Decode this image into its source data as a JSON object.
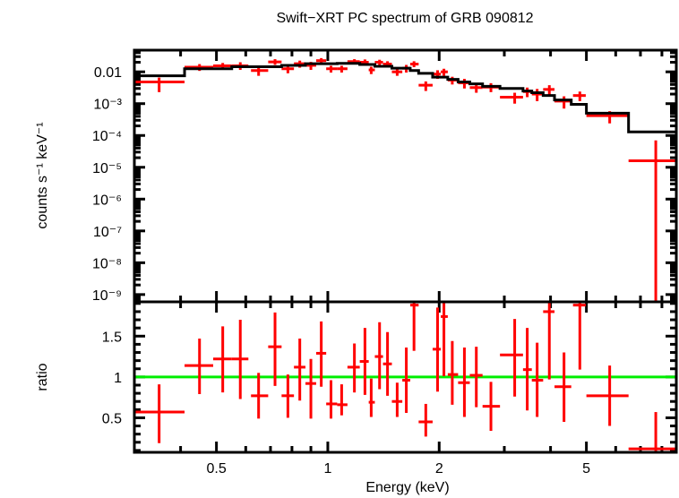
{
  "chart_data": {
    "type": "scatter",
    "title": "Swift−XRT PC spectrum of GRB 090812",
    "xlabel": "Energy (keV)",
    "xscale": "log",
    "xlim": [
      0.3,
      8.75
    ],
    "x_ticks": [
      {
        "value": 0.5,
        "label": "0.5"
      },
      {
        "value": 1,
        "label": "1"
      },
      {
        "value": 2,
        "label": "2"
      },
      {
        "value": 5,
        "label": "5"
      }
    ],
    "panels": [
      {
        "name": "spectrum",
        "ylabel": "counts s⁻¹ keV⁻¹",
        "yscale": "log",
        "ylim": [
          5.9e-10,
          0.048
        ],
        "y_ticks": [
          {
            "value": 0.01,
            "label": "0.01"
          },
          {
            "value": 0.001,
            "label": "10⁻³"
          },
          {
            "value": 0.0001,
            "label": "10⁻⁴"
          },
          {
            "value": 1e-05,
            "label": "10⁻⁵"
          },
          {
            "value": 1e-06,
            "label": "10⁻⁶"
          },
          {
            "value": 1e-07,
            "label": "10⁻⁷"
          },
          {
            "value": 1e-08,
            "label": "10⁻⁸"
          },
          {
            "value": 1e-09,
            "label": "10⁻⁹"
          }
        ],
        "series": [
          {
            "name": "data",
            "color": "#ff0000",
            "points": [
              {
                "x": 0.35,
                "xlo": 0.3,
                "xhi": 0.41,
                "y": 0.0048,
                "ylo": 0.0023,
                "yhi": 0.0066
              },
              {
                "x": 0.45,
                "xlo": 0.41,
                "xhi": 0.49,
                "y": 0.014,
                "ylo": 0.0107,
                "yhi": 0.0175
              },
              {
                "x": 0.52,
                "xlo": 0.49,
                "xhi": 0.55,
                "y": 0.0155,
                "ylo": 0.012,
                "yhi": 0.019
              },
              {
                "x": 0.58,
                "xlo": 0.55,
                "xhi": 0.61,
                "y": 0.0155,
                "ylo": 0.0115,
                "yhi": 0.02
              },
              {
                "x": 0.65,
                "xlo": 0.62,
                "xhi": 0.69,
                "y": 0.011,
                "ylo": 0.0075,
                "yhi": 0.0145
              },
              {
                "x": 0.72,
                "xlo": 0.69,
                "xhi": 0.75,
                "y": 0.0205,
                "ylo": 0.0165,
                "yhi": 0.025
              },
              {
                "x": 0.78,
                "xlo": 0.75,
                "xhi": 0.81,
                "y": 0.0125,
                "ylo": 0.009,
                "yhi": 0.016
              },
              {
                "x": 0.84,
                "xlo": 0.81,
                "xhi": 0.87,
                "y": 0.018,
                "ylo": 0.0135,
                "yhi": 0.0225
              },
              {
                "x": 0.9,
                "xlo": 0.87,
                "xhi": 0.93,
                "y": 0.016,
                "ylo": 0.0115,
                "yhi": 0.0205
              },
              {
                "x": 0.96,
                "xlo": 0.93,
                "xhi": 0.99,
                "y": 0.0225,
                "ylo": 0.018,
                "yhi": 0.027
              },
              {
                "x": 1.02,
                "xlo": 0.99,
                "xhi": 1.06,
                "y": 0.0125,
                "ylo": 0.0095,
                "yhi": 0.0155
              },
              {
                "x": 1.09,
                "xlo": 1.06,
                "xhi": 1.13,
                "y": 0.0125,
                "ylo": 0.0095,
                "yhi": 0.0155
              },
              {
                "x": 1.18,
                "xlo": 1.13,
                "xhi": 1.22,
                "y": 0.021,
                "ylo": 0.0175,
                "yhi": 0.025
              },
              {
                "x": 1.26,
                "xlo": 1.22,
                "xhi": 1.29,
                "y": 0.02,
                "ylo": 0.0155,
                "yhi": 0.0245
              },
              {
                "x": 1.31,
                "xlo": 1.29,
                "xhi": 1.34,
                "y": 0.0115,
                "ylo": 0.0085,
                "yhi": 0.0145
              },
              {
                "x": 1.38,
                "xlo": 1.34,
                "xhi": 1.41,
                "y": 0.02,
                "ylo": 0.016,
                "yhi": 0.024
              },
              {
                "x": 1.45,
                "xlo": 1.41,
                "xhi": 1.49,
                "y": 0.0175,
                "ylo": 0.014,
                "yhi": 0.0215
              },
              {
                "x": 1.54,
                "xlo": 1.49,
                "xhi": 1.59,
                "y": 0.01,
                "ylo": 0.0075,
                "yhi": 0.0125
              },
              {
                "x": 1.63,
                "xlo": 1.59,
                "xhi": 1.67,
                "y": 0.013,
                "ylo": 0.0095,
                "yhi": 0.0165
              },
              {
                "x": 1.71,
                "xlo": 1.67,
                "xhi": 1.76,
                "y": 0.0175,
                "ylo": 0.014,
                "yhi": 0.0215
              },
              {
                "x": 1.84,
                "xlo": 1.76,
                "xhi": 1.92,
                "y": 0.0038,
                "ylo": 0.0025,
                "yhi": 0.005
              },
              {
                "x": 1.98,
                "xlo": 1.92,
                "xhi": 2.02,
                "y": 0.0085,
                "ylo": 0.006,
                "yhi": 0.0112
              },
              {
                "x": 2.06,
                "xlo": 2.02,
                "xhi": 2.11,
                "y": 0.01,
                "ylo": 0.0075,
                "yhi": 0.0125
              },
              {
                "x": 2.17,
                "xlo": 2.11,
                "xhi": 2.25,
                "y": 0.0055,
                "ylo": 0.004,
                "yhi": 0.007
              },
              {
                "x": 2.34,
                "xlo": 2.25,
                "xhi": 2.42,
                "y": 0.0045,
                "ylo": 0.003,
                "yhi": 0.006
              },
              {
                "x": 2.52,
                "xlo": 2.42,
                "xhi": 2.62,
                "y": 0.0032,
                "ylo": 0.0022,
                "yhi": 0.0043
              },
              {
                "x": 2.76,
                "xlo": 2.62,
                "xhi": 2.92,
                "y": 0.0033,
                "ylo": 0.0023,
                "yhi": 0.0044
              },
              {
                "x": 3.2,
                "xlo": 2.92,
                "xhi": 3.37,
                "y": 0.0016,
                "ylo": 0.001,
                "yhi": 0.0022
              },
              {
                "x": 3.46,
                "xlo": 3.37,
                "xhi": 3.56,
                "y": 0.0024,
                "ylo": 0.0016,
                "yhi": 0.0032
              },
              {
                "x": 3.68,
                "xlo": 3.56,
                "xhi": 3.82,
                "y": 0.002,
                "ylo": 0.0012,
                "yhi": 0.0029
              },
              {
                "x": 3.97,
                "xlo": 3.82,
                "xhi": 4.1,
                "y": 0.0028,
                "ylo": 0.0018,
                "yhi": 0.0038
              },
              {
                "x": 4.35,
                "xlo": 4.1,
                "xhi": 4.55,
                "y": 0.0012,
                "ylo": 0.0007,
                "yhi": 0.0017
              },
              {
                "x": 4.8,
                "xlo": 4.6,
                "xhi": 4.98,
                "y": 0.0018,
                "ylo": 0.0012,
                "yhi": 0.0024
              },
              {
                "x": 5.78,
                "xlo": 5.0,
                "xhi": 6.5,
                "y": 0.00042,
                "ylo": 0.00024,
                "yhi": 0.00058
              },
              {
                "x": 7.7,
                "xlo": 6.5,
                "xhi": 8.75,
                "y": 1.6e-05,
                "ylo": 5.9e-10,
                "yhi": 7e-05
              }
            ]
          },
          {
            "name": "model",
            "color": "#000000",
            "style": "step",
            "steps": [
              {
                "xlo": 0.3,
                "xhi": 0.41,
                "y": 0.0075
              },
              {
                "xlo": 0.41,
                "xhi": 0.55,
                "y": 0.0125
              },
              {
                "xlo": 0.55,
                "xhi": 0.75,
                "y": 0.0145
              },
              {
                "xlo": 0.75,
                "xhi": 0.87,
                "y": 0.016
              },
              {
                "xlo": 0.87,
                "xhi": 1.06,
                "y": 0.018
              },
              {
                "xlo": 1.06,
                "xhi": 1.22,
                "y": 0.0185
              },
              {
                "xlo": 1.22,
                "xhi": 1.34,
                "y": 0.017
              },
              {
                "xlo": 1.34,
                "xhi": 1.49,
                "y": 0.015
              },
              {
                "xlo": 1.49,
                "xhi": 1.67,
                "y": 0.013
              },
              {
                "xlo": 1.67,
                "xhi": 1.76,
                "y": 0.011
              },
              {
                "xlo": 1.76,
                "xhi": 1.92,
                "y": 0.009
              },
              {
                "xlo": 1.92,
                "xhi": 2.11,
                "y": 0.0068
              },
              {
                "xlo": 2.11,
                "xhi": 2.25,
                "y": 0.0058
              },
              {
                "xlo": 2.25,
                "xhi": 2.42,
                "y": 0.0048
              },
              {
                "xlo": 2.42,
                "xhi": 2.62,
                "y": 0.0042
              },
              {
                "xlo": 2.62,
                "xhi": 2.92,
                "y": 0.0035
              },
              {
                "xlo": 2.92,
                "xhi": 3.37,
                "y": 0.003
              },
              {
                "xlo": 3.37,
                "xhi": 3.56,
                "y": 0.0025
              },
              {
                "xlo": 3.56,
                "xhi": 3.82,
                "y": 0.0022
              },
              {
                "xlo": 3.82,
                "xhi": 4.1,
                "y": 0.0018
              },
              {
                "xlo": 4.1,
                "xhi": 4.55,
                "y": 0.0013
              },
              {
                "xlo": 4.55,
                "xhi": 5.0,
                "y": 0.00095
              },
              {
                "xlo": 5.0,
                "xhi": 6.5,
                "y": 0.0005
              },
              {
                "xlo": 6.5,
                "xhi": 8.75,
                "y": 0.00013
              }
            ]
          }
        ]
      },
      {
        "name": "ratio",
        "ylabel": "ratio",
        "yscale": "linear",
        "ylim": [
          0.077,
          1.92
        ],
        "y_ticks": [
          {
            "value": 0.5,
            "label": "0.5"
          },
          {
            "value": 1,
            "label": "1"
          },
          {
            "value": 1.5,
            "label": "1.5"
          }
        ],
        "reference_line": {
          "y": 1,
          "color": "#00ee00"
        },
        "series": [
          {
            "name": "ratio",
            "color": "#ff0000",
            "points": [
              {
                "x": 0.35,
                "xlo": 0.3,
                "xhi": 0.41,
                "y": 0.57,
                "ylo": 0.19,
                "yhi": 0.91
              },
              {
                "x": 0.45,
                "xlo": 0.41,
                "xhi": 0.49,
                "y": 1.14,
                "ylo": 0.79,
                "yhi": 1.47
              },
              {
                "x": 0.52,
                "xlo": 0.49,
                "xhi": 0.55,
                "y": 1.22,
                "ylo": 0.81,
                "yhi": 1.62
              },
              {
                "x": 0.58,
                "xlo": 0.55,
                "xhi": 0.61,
                "y": 1.22,
                "ylo": 0.73,
                "yhi": 1.7
              },
              {
                "x": 0.65,
                "xlo": 0.62,
                "xhi": 0.69,
                "y": 0.77,
                "ylo": 0.49,
                "yhi": 1.05
              },
              {
                "x": 0.72,
                "xlo": 0.69,
                "xhi": 0.75,
                "y": 1.37,
                "ylo": 0.89,
                "yhi": 1.79
              },
              {
                "x": 0.78,
                "xlo": 0.75,
                "xhi": 0.81,
                "y": 0.77,
                "ylo": 0.5,
                "yhi": 1.03
              },
              {
                "x": 0.84,
                "xlo": 0.81,
                "xhi": 0.87,
                "y": 1.12,
                "ylo": 0.71,
                "yhi": 1.47
              },
              {
                "x": 0.9,
                "xlo": 0.87,
                "xhi": 0.93,
                "y": 0.92,
                "ylo": 0.49,
                "yhi": 1.22
              },
              {
                "x": 0.96,
                "xlo": 0.93,
                "xhi": 0.99,
                "y": 1.29,
                "ylo": 0.88,
                "yhi": 1.68
              },
              {
                "x": 1.02,
                "xlo": 0.99,
                "xhi": 1.06,
                "y": 0.67,
                "ylo": 0.49,
                "yhi": 0.96
              },
              {
                "x": 1.09,
                "xlo": 1.06,
                "xhi": 1.13,
                "y": 0.66,
                "ylo": 0.53,
                "yhi": 0.91
              },
              {
                "x": 1.18,
                "xlo": 1.13,
                "xhi": 1.22,
                "y": 1.12,
                "ylo": 0.81,
                "yhi": 1.41
              },
              {
                "x": 1.26,
                "xlo": 1.22,
                "xhi": 1.29,
                "y": 1.19,
                "ylo": 0.78,
                "yhi": 1.6
              },
              {
                "x": 1.31,
                "xlo": 1.29,
                "xhi": 1.34,
                "y": 0.69,
                "ylo": 0.51,
                "yhi": 0.98
              },
              {
                "x": 1.38,
                "xlo": 1.34,
                "xhi": 1.41,
                "y": 1.25,
                "ylo": 0.85,
                "yhi": 1.67
              },
              {
                "x": 1.45,
                "xlo": 1.41,
                "xhi": 1.49,
                "y": 1.16,
                "ylo": 0.77,
                "yhi": 1.55
              },
              {
                "x": 1.54,
                "xlo": 1.49,
                "xhi": 1.59,
                "y": 0.7,
                "ylo": 0.51,
                "yhi": 0.93
              },
              {
                "x": 1.63,
                "xlo": 1.59,
                "xhi": 1.67,
                "y": 0.96,
                "ylo": 0.56,
                "yhi": 1.36
              },
              {
                "x": 1.71,
                "xlo": 1.67,
                "xhi": 1.76,
                "y": 1.88,
                "ylo": 1.32,
                "yhi": 1.92
              },
              {
                "x": 1.84,
                "xlo": 1.76,
                "xhi": 1.92,
                "y": 0.45,
                "ylo": 0.27,
                "yhi": 0.67
              },
              {
                "x": 1.98,
                "xlo": 1.92,
                "xhi": 2.02,
                "y": 1.34,
                "ylo": 0.82,
                "yhi": 1.85
              },
              {
                "x": 2.06,
                "xlo": 2.02,
                "xhi": 2.11,
                "y": 1.74,
                "ylo": 1.01,
                "yhi": 1.92
              },
              {
                "x": 2.17,
                "xlo": 2.11,
                "xhi": 2.25,
                "y": 1.03,
                "ylo": 0.66,
                "yhi": 1.44
              },
              {
                "x": 2.34,
                "xlo": 2.25,
                "xhi": 2.42,
                "y": 0.93,
                "ylo": 0.51,
                "yhi": 1.36
              },
              {
                "x": 2.52,
                "xlo": 2.42,
                "xhi": 2.62,
                "y": 1.02,
                "ylo": 0.63,
                "yhi": 1.37
              },
              {
                "x": 2.76,
                "xlo": 2.62,
                "xhi": 2.92,
                "y": 0.64,
                "ylo": 0.34,
                "yhi": 0.94
              },
              {
                "x": 3.2,
                "xlo": 2.92,
                "xhi": 3.37,
                "y": 1.27,
                "ylo": 0.76,
                "yhi": 1.71
              },
              {
                "x": 3.46,
                "xlo": 3.37,
                "xhi": 3.56,
                "y": 1.09,
                "ylo": 0.59,
                "yhi": 1.6
              },
              {
                "x": 3.68,
                "xlo": 3.56,
                "xhi": 3.82,
                "y": 0.96,
                "ylo": 0.51,
                "yhi": 1.42
              },
              {
                "x": 3.97,
                "xlo": 3.82,
                "xhi": 4.1,
                "y": 1.8,
                "ylo": 0.97,
                "yhi": 1.92
              },
              {
                "x": 4.35,
                "xlo": 4.1,
                "xhi": 4.55,
                "y": 0.88,
                "ylo": 0.45,
                "yhi": 1.3
              },
              {
                "x": 4.8,
                "xlo": 4.6,
                "xhi": 4.98,
                "y": 1.88,
                "ylo": 1.09,
                "yhi": 1.92
              },
              {
                "x": 5.78,
                "xlo": 5.0,
                "xhi": 6.5,
                "y": 0.77,
                "ylo": 0.4,
                "yhi": 1.14
              },
              {
                "x": 7.7,
                "xlo": 6.5,
                "xhi": 8.75,
                "y": 0.12,
                "ylo": 0.077,
                "yhi": 0.57
              }
            ]
          }
        ]
      }
    ]
  }
}
